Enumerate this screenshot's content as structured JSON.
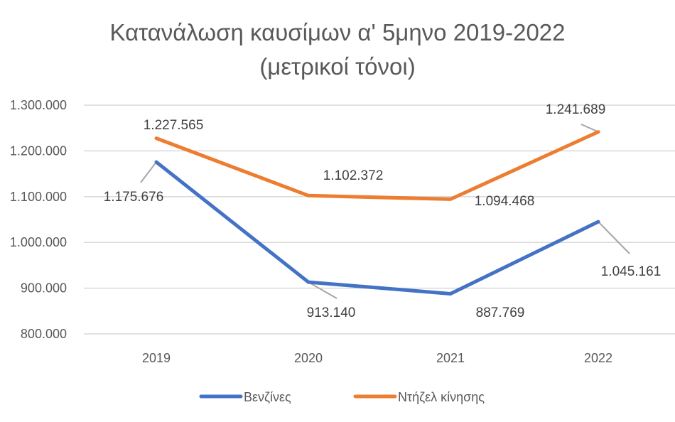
{
  "chart_data": {
    "type": "line",
    "title": [
      "Κατανάλωση καυσίμων α' 5μηνο 2019-2022",
      "(μετρικοί τόνοι)"
    ],
    "categories": [
      "2019",
      "2020",
      "2021",
      "2022"
    ],
    "ylim": [
      800000,
      1300000
    ],
    "ytick_values": [
      800000,
      900000,
      1000000,
      1100000,
      1200000,
      1300000
    ],
    "ytick_labels": [
      "800.000",
      "900.000",
      "1.000.000",
      "1.100.000",
      "1.200.000",
      "1.300.000"
    ],
    "grid": true,
    "legend_position": "bottom",
    "series": [
      {
        "name": "Βενζίνες",
        "color": "#4472C4",
        "values": [
          1175676,
          913140,
          887769,
          1045161
        ],
        "labels": [
          "1.175.676",
          "913.140",
          "887.769",
          "1.045.161"
        ]
      },
      {
        "name": "Ντήζελ κίνησης",
        "color": "#ED7D31",
        "values": [
          1227565,
          1102372,
          1094468,
          1241689
        ],
        "labels": [
          "1.227.565",
          "1.102.372",
          "1.094.468",
          "1.241.689"
        ]
      }
    ]
  }
}
